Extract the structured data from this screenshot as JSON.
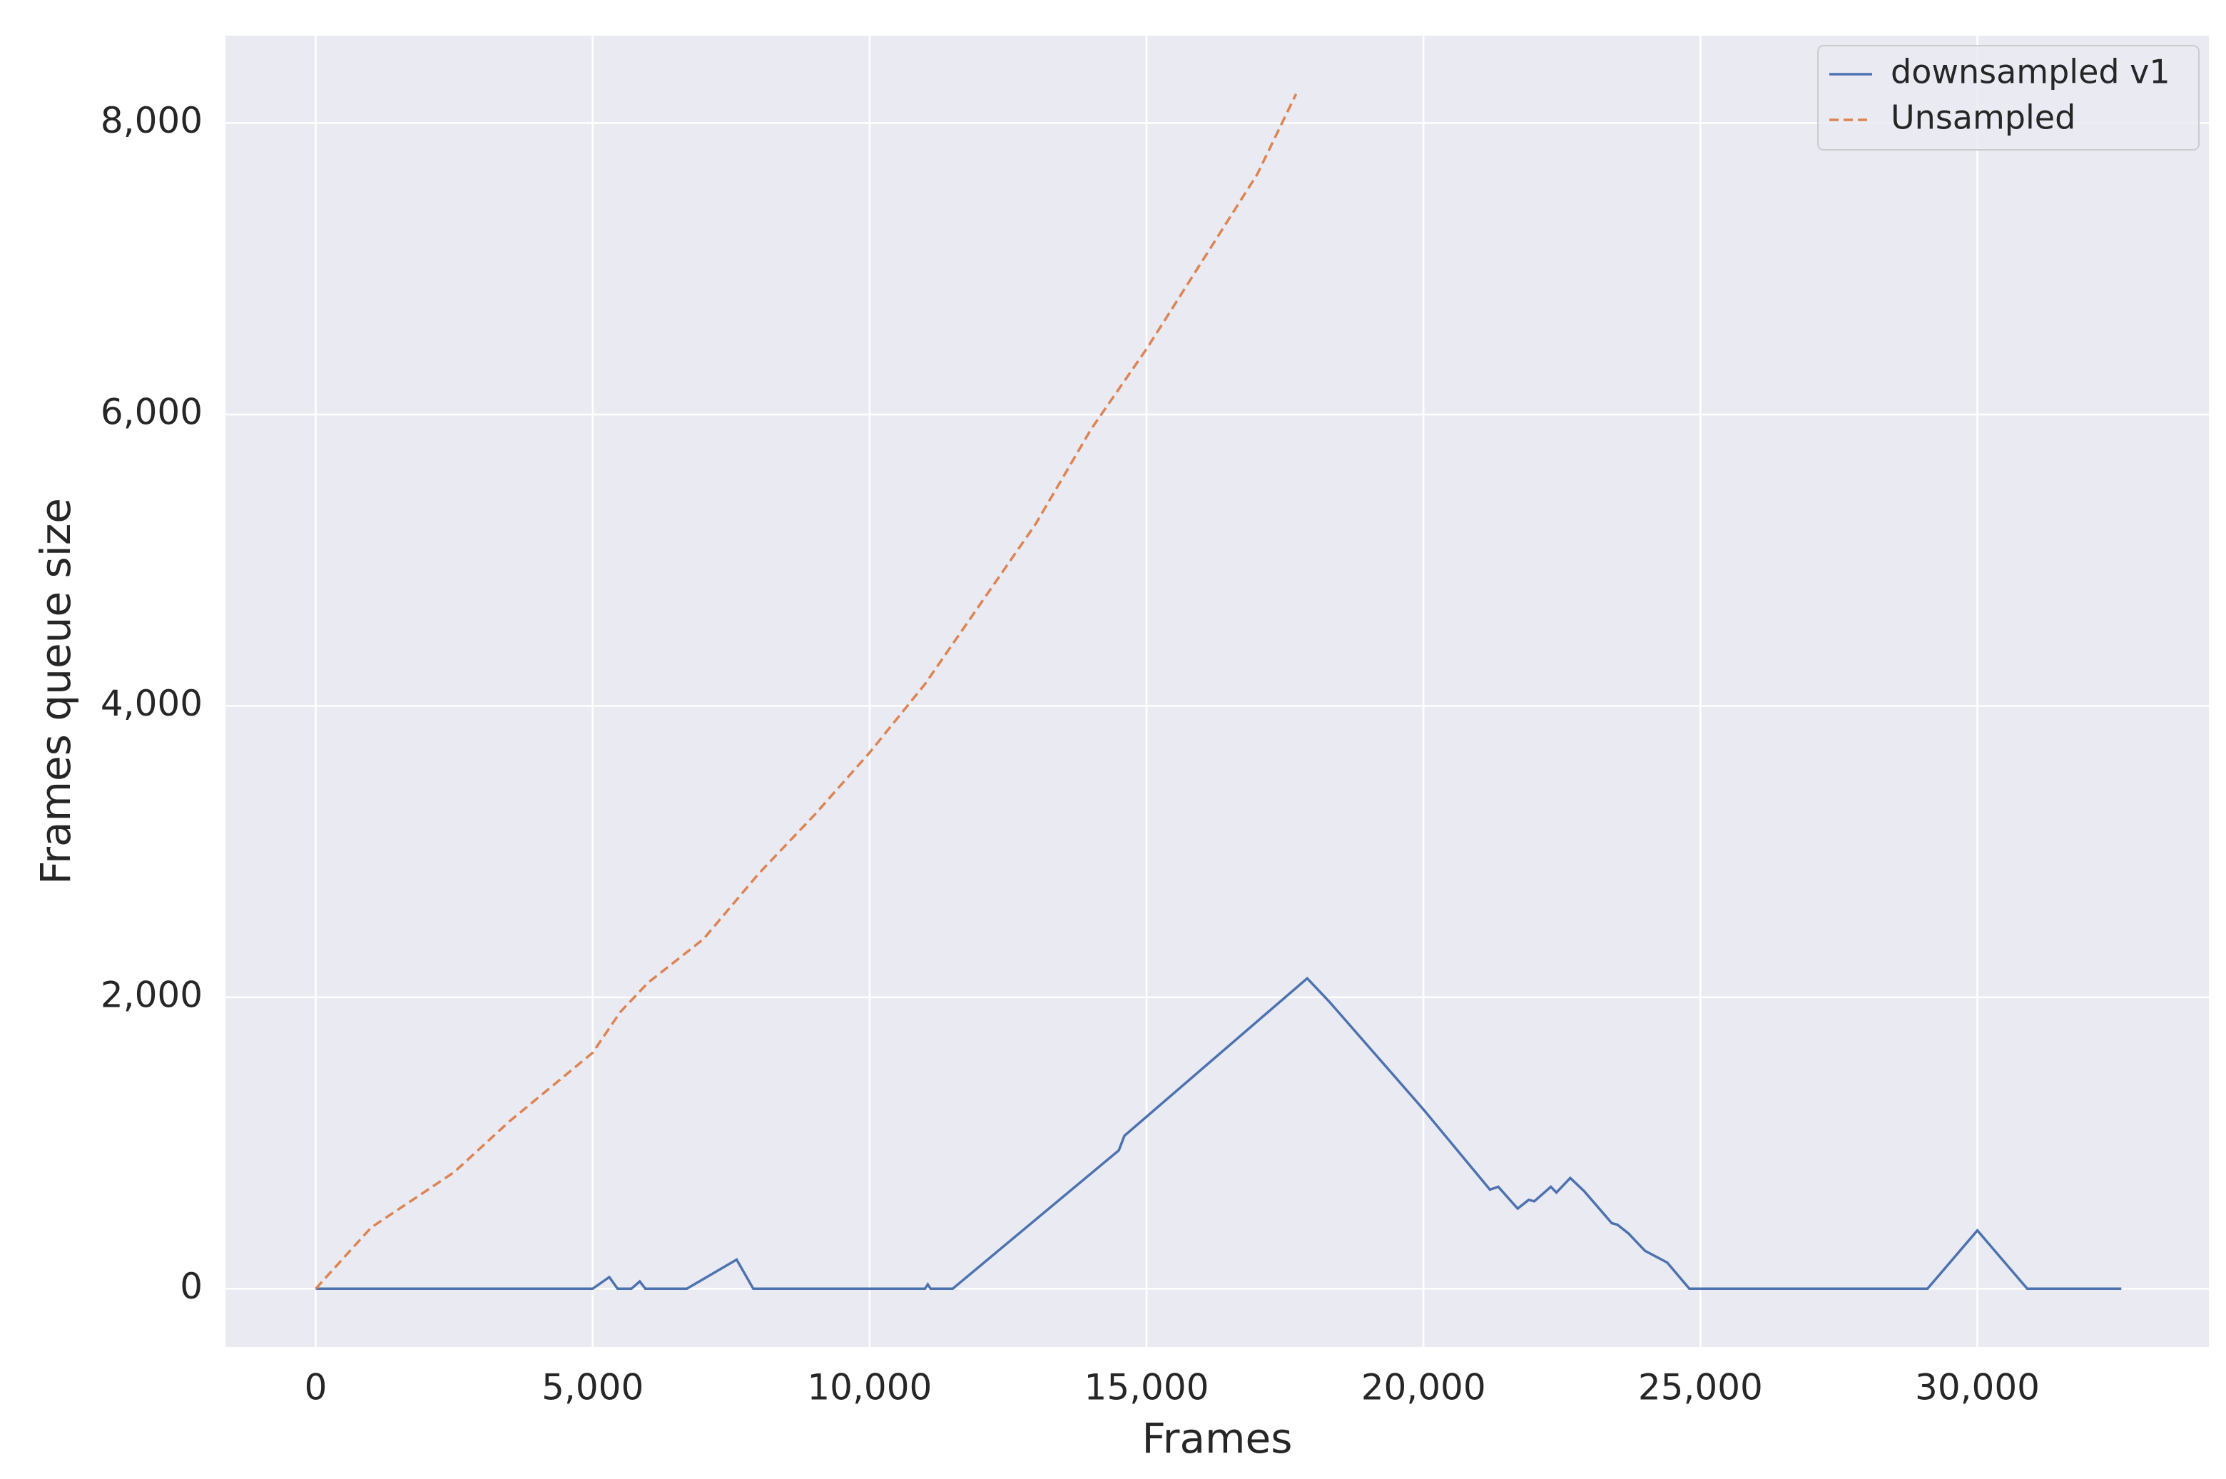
{
  "chart_data": {
    "type": "line",
    "xlabel": "Frames",
    "ylabel": "Frames queue size",
    "xlim": [
      -1630,
      34180
    ],
    "ylim": [
      -400,
      8600
    ],
    "xticks": [
      0,
      {
        "value": 5000,
        "label": "5,000"
      },
      {
        "value": 10000,
        "label": "10,000"
      },
      {
        "value": 15000,
        "label": "15,000"
      },
      {
        "value": 20000,
        "label": "20,000"
      },
      {
        "value": 25000,
        "label": "25,000"
      },
      {
        "value": 30000,
        "label": "30,000"
      }
    ],
    "yticks": [
      0,
      {
        "value": 2000,
        "label": "2,000"
      },
      {
        "value": 4000,
        "label": "4,000"
      },
      {
        "value": 6000,
        "label": "6,000"
      },
      {
        "value": 8000,
        "label": "8,000"
      }
    ],
    "grid": true,
    "background": "#eaeaf2",
    "legend": "upper right",
    "series": [
      {
        "name": "downsampled v1",
        "color": "#4c72b0",
        "dash": false,
        "x": [
          0,
          5000,
          5300,
          5450,
          5700,
          5850,
          5950,
          6700,
          7600,
          7900,
          11000,
          11050,
          11100,
          11500,
          14500,
          14600,
          17900,
          18300,
          20000,
          21200,
          21350,
          21700,
          21900,
          22000,
          22300,
          22400,
          22650,
          22900,
          23400,
          23500,
          23700,
          24000,
          24400,
          24800,
          29100,
          30000,
          30900,
          32600
        ],
        "values": [
          0,
          0,
          80,
          0,
          0,
          50,
          0,
          0,
          200,
          0,
          0,
          30,
          0,
          0,
          950,
          1050,
          2130,
          1970,
          1230,
          680,
          700,
          550,
          610,
          600,
          700,
          660,
          760,
          670,
          450,
          440,
          380,
          260,
          180,
          0,
          0,
          400,
          0,
          0
        ]
      },
      {
        "name": "Unsampled",
        "color": "#dd8452",
        "dash": true,
        "x": [
          0,
          1000,
          2500,
          3500,
          5000,
          5500,
          6000,
          7000,
          8000,
          9000,
          10000,
          11000,
          12000,
          13000,
          14000,
          15000,
          16000,
          17000,
          17700
        ],
        "values": [
          0,
          420,
          800,
          1150,
          1620,
          1900,
          2100,
          2400,
          2850,
          3250,
          3680,
          4150,
          4700,
          5250,
          5900,
          6450,
          7050,
          7650,
          8200
        ]
      }
    ]
  }
}
